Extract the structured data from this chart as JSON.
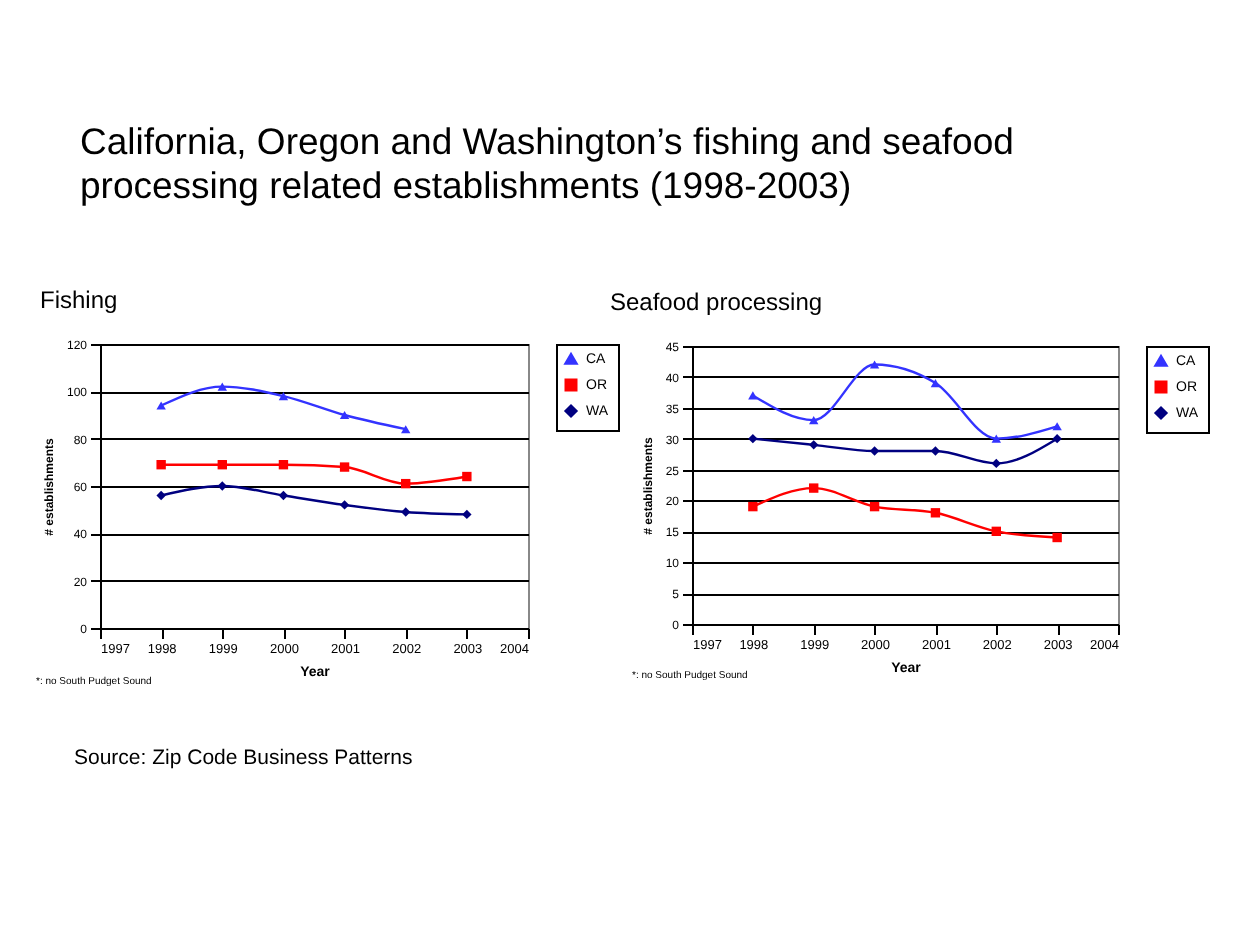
{
  "chart_data": [
    {
      "type": "line",
      "title": "California, Oregon and Washington’s fishing and seafood processing related establishments (1998-2003)",
      "subtitle": "Fishing",
      "xlabel": "Year",
      "ylabel": "# establishments",
      "x": [
        1998,
        1999,
        2000,
        2001,
        2002,
        2003
      ],
      "xlim": [
        1997,
        2004
      ],
      "xticks": [
        1997,
        1998,
        1999,
        2000,
        2001,
        2002,
        2003,
        2004
      ],
      "ylim": [
        0,
        120
      ],
      "yticks": [
        0,
        20,
        40,
        60,
        80,
        100,
        120
      ],
      "grid": "y",
      "legend": "right",
      "annotations": [
        "*: no South Pudget Sound",
        "Source: Zip Code Business Patterns"
      ],
      "series": [
        {
          "name": "CA",
          "color": "#3333ff",
          "marker": "triangle",
          "values": [
            94,
            102,
            98,
            90,
            84,
            null
          ]
        },
        {
          "name": "OR",
          "color": "#ff0000",
          "marker": "square",
          "values": [
            69,
            69,
            69,
            68,
            61,
            64
          ]
        },
        {
          "name": "WA",
          "color": "#000080",
          "marker": "diamond",
          "values": [
            56,
            60,
            56,
            52,
            49,
            48
          ]
        }
      ]
    },
    {
      "type": "line",
      "subtitle": "Seafood processing",
      "xlabel": "Year",
      "ylabel": "# establishments",
      "x": [
        1998,
        1999,
        2000,
        2001,
        2002,
        2003
      ],
      "xlim": [
        1997,
        2004
      ],
      "xticks": [
        1997,
        1998,
        1999,
        2000,
        2001,
        2002,
        2003,
        2004
      ],
      "ylim": [
        0,
        45
      ],
      "yticks": [
        0,
        5,
        10,
        15,
        20,
        25,
        30,
        35,
        40,
        45
      ],
      "grid": "y",
      "legend": "right",
      "annotations": [
        "*: no South Pudget Sound"
      ],
      "series": [
        {
          "name": "CA",
          "color": "#3333ff",
          "marker": "triangle",
          "values": [
            37,
            33,
            42,
            39,
            30,
            32
          ]
        },
        {
          "name": "OR",
          "color": "#ff0000",
          "marker": "square",
          "values": [
            19,
            22,
            19,
            18,
            15,
            14
          ]
        },
        {
          "name": "WA",
          "color": "#000080",
          "marker": "diamond",
          "values": [
            30,
            29,
            28,
            28,
            26,
            30
          ]
        }
      ]
    }
  ]
}
